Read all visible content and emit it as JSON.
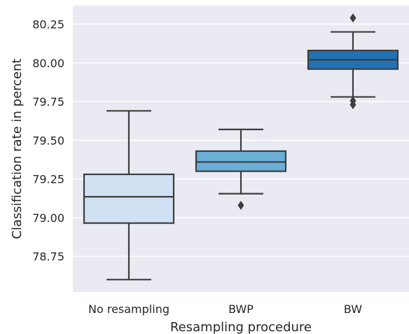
{
  "chart_data": {
    "type": "box",
    "title": "",
    "xlabel": "Resampling procedure",
    "ylabel": "Classification rate in percent",
    "ylim": [
      78.52,
      80.37
    ],
    "yticks": [
      78.75,
      79.0,
      79.25,
      79.5,
      79.75,
      80.0,
      80.25
    ],
    "ytick_labels": [
      "78.75",
      "79.00",
      "79.25",
      "79.50",
      "79.75",
      "80.00",
      "80.25"
    ],
    "grid": true,
    "categories": [
      "No resampling",
      "BWP",
      "BW"
    ],
    "boxes": [
      {
        "category": "No resampling",
        "whisker_low": 78.6,
        "q1": 78.965,
        "median": 79.135,
        "q3": 79.28,
        "whisker_high": 79.69,
        "outliers": [],
        "color": "#cfe1f2"
      },
      {
        "category": "BWP",
        "whisker_low": 79.155,
        "q1": 79.3,
        "median": 79.36,
        "q3": 79.43,
        "whisker_high": 79.57,
        "outliers": [
          79.08
        ],
        "color": "#6baed6"
      },
      {
        "category": "BW",
        "whisker_low": 79.78,
        "q1": 79.96,
        "median": 80.02,
        "q3": 80.08,
        "whisker_high": 80.2,
        "outliers": [
          80.29,
          79.755,
          79.73
        ],
        "color": "#2171b5"
      }
    ],
    "colors": {
      "background": "#eaeaf2",
      "grid": "#ffffff",
      "line": "#3d3d3d"
    }
  }
}
